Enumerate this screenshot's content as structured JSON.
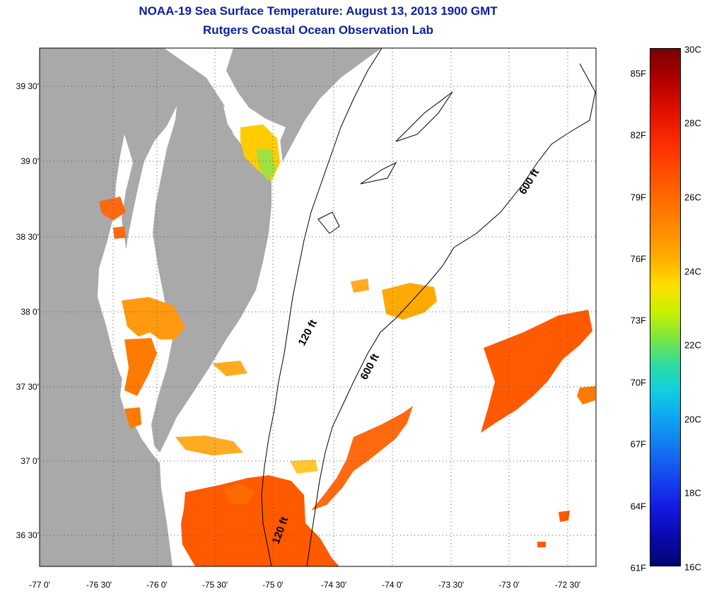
{
  "title": "NOAA-19 Sea Surface Temperature:  August 13, 2013 1900 GMT",
  "subtitle": "Rutgers Coastal Ocean Observation Lab",
  "latitude_ticks": [
    "39 30'",
    "39 0'",
    "38 30'",
    "38 0'",
    "37 30'",
    "37 0'",
    "36 30'"
  ],
  "longitude_ticks": [
    "-77 0'",
    "-76 30'",
    "-76 0'",
    "-75 30'",
    "-75 0'",
    "-74 30'",
    "-74 0'",
    "-73 30'",
    "-73 0'",
    "-72 30'"
  ],
  "contour_labels": [
    "120 ft",
    "600 ft",
    "600 ft",
    "120 ft"
  ],
  "colorbar": {
    "fahrenheit_labels": [
      "85F",
      "82F",
      "79F",
      "76F",
      "73F",
      "70F",
      "67F",
      "64F",
      "61F"
    ],
    "celsius_labels": [
      "30C",
      "28C",
      "26C",
      "24C",
      "22C",
      "20C",
      "18C",
      "16C"
    ],
    "range_celsius": [
      16,
      30
    ],
    "range_fahrenheit": [
      61,
      86
    ]
  },
  "colors": {
    "land": "#a9a9a9",
    "title": "#0a1f9e",
    "warm": "#ff5a00",
    "cool": "#ffc000"
  }
}
